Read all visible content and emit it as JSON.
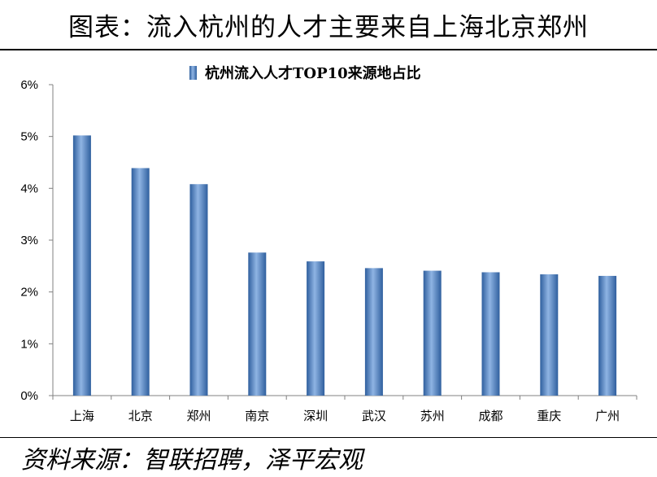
{
  "figure": {
    "title": "图表：流入杭州的人才主要来自上海北京郑州",
    "source": "资料来源：智联招聘，泽平宏观"
  },
  "chart_data": {
    "type": "bar",
    "title": "",
    "legend": [
      "杭州流入人才TOP10来源地占比"
    ],
    "legend_position": "top-center",
    "categories": [
      "上海",
      "北京",
      "郑州",
      "南京",
      "深圳",
      "武汉",
      "苏州",
      "成都",
      "重庆",
      "广州"
    ],
    "series": [
      {
        "name": "杭州流入人才TOP10来源地占比",
        "values": [
          5.02,
          4.39,
          4.08,
          2.76,
          2.59,
          2.46,
          2.41,
          2.38,
          2.34,
          2.31
        ],
        "color": "#4a7fc1"
      }
    ],
    "y_ticks": [
      "0%",
      "1%",
      "2%",
      "3%",
      "4%",
      "5%",
      "6%"
    ],
    "ylim": [
      0,
      6
    ],
    "xlabel": "",
    "ylabel": "",
    "grid": false
  }
}
